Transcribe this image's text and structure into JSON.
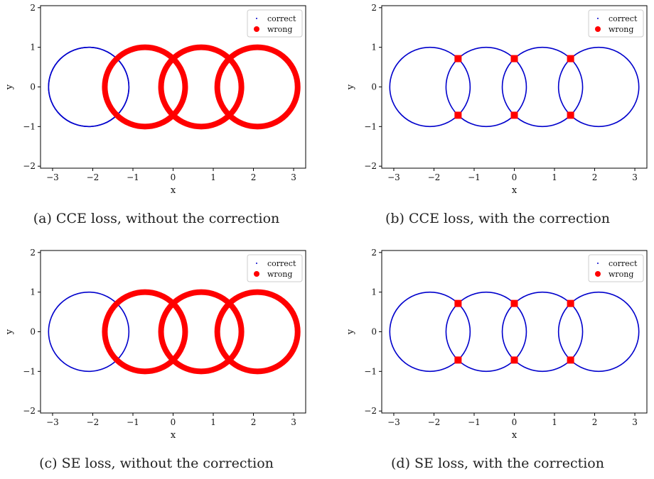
{
  "panels": [
    {
      "caption": "(a) CCE loss, without the correction"
    },
    {
      "caption": "(b) CCE loss, with the correction"
    },
    {
      "caption": "(c) SE loss, without the correction"
    },
    {
      "caption": "(d) SE loss, with the correction"
    }
  ],
  "chart_data": [
    {
      "type": "scatter",
      "title": "",
      "xlabel": "x",
      "ylabel": "y",
      "xlim": [
        -3.3,
        3.3
      ],
      "ylim": [
        -2.05,
        2.05
      ],
      "xticks": [
        "−3",
        "−2",
        "−1",
        "0",
        "1",
        "2",
        "3"
      ],
      "yticks": [
        "−2",
        "−1",
        "0",
        "1",
        "2"
      ],
      "legend": {
        "placement": "top-right"
      },
      "series": [
        {
          "name": "correct",
          "color": "#0000cc",
          "marker": "dot",
          "circles": [
            {
              "cx": -2.1,
              "cy": 0,
              "r": 1,
              "arc": "outer"
            },
            {
              "cx": -2.1,
              "cy": 0,
              "r": 1,
              "arc": "inner"
            }
          ]
        },
        {
          "name": "wrong",
          "color": "#ff0000",
          "marker": "thick",
          "circles": [
            {
              "cx": -0.7,
              "cy": 0,
              "r": 1
            },
            {
              "cx": 0.7,
              "cy": 0,
              "r": 1
            },
            {
              "cx": 2.1,
              "cy": 0,
              "r": 1
            }
          ]
        }
      ]
    },
    {
      "type": "scatter",
      "title": "",
      "xlabel": "x",
      "ylabel": "y",
      "xlim": [
        -3.3,
        3.3
      ],
      "ylim": [
        -2.05,
        2.05
      ],
      "xticks": [
        "−3",
        "−2",
        "−1",
        "0",
        "1",
        "2",
        "3"
      ],
      "yticks": [
        "−2",
        "−1",
        "0",
        "1",
        "2"
      ],
      "legend": {
        "placement": "top-right"
      },
      "series": [
        {
          "name": "correct",
          "color": "#0000cc",
          "marker": "dot",
          "circles": [
            {
              "cx": -2.1,
              "cy": 0,
              "r": 1
            },
            {
              "cx": -0.7,
              "cy": 0,
              "r": 1
            },
            {
              "cx": 0.7,
              "cy": 0,
              "r": 1
            },
            {
              "cx": 2.1,
              "cy": 0,
              "r": 1
            }
          ]
        },
        {
          "name": "wrong",
          "color": "#ff0000",
          "marker": "square",
          "points": [
            [
              -1.4,
              0.714
            ],
            [
              -1.4,
              -0.714
            ],
            [
              0,
              0.714
            ],
            [
              0,
              -0.714
            ],
            [
              1.4,
              0.714
            ],
            [
              1.4,
              -0.714
            ]
          ]
        }
      ]
    },
    {
      "type": "scatter",
      "title": "",
      "xlabel": "x",
      "ylabel": "y",
      "xlim": [
        -3.3,
        3.3
      ],
      "ylim": [
        -2.05,
        2.05
      ],
      "xticks": [
        "−3",
        "−2",
        "−1",
        "0",
        "1",
        "2",
        "3"
      ],
      "yticks": [
        "−2",
        "−1",
        "0",
        "1",
        "2"
      ],
      "legend": {
        "placement": "top-right"
      },
      "series": [
        {
          "name": "correct",
          "color": "#0000cc",
          "marker": "dot",
          "circles": [
            {
              "cx": -2.1,
              "cy": 0,
              "r": 1
            }
          ]
        },
        {
          "name": "wrong",
          "color": "#ff0000",
          "marker": "thick",
          "circles": [
            {
              "cx": -0.7,
              "cy": 0,
              "r": 1
            },
            {
              "cx": 0.7,
              "cy": 0,
              "r": 1
            },
            {
              "cx": 2.1,
              "cy": 0,
              "r": 1
            }
          ]
        }
      ]
    },
    {
      "type": "scatter",
      "title": "",
      "xlabel": "x",
      "ylabel": "y",
      "xlim": [
        -3.3,
        3.3
      ],
      "ylim": [
        -2.05,
        2.05
      ],
      "xticks": [
        "−3",
        "−2",
        "−1",
        "0",
        "1",
        "2",
        "3"
      ],
      "yticks": [
        "−2",
        "−1",
        "0",
        "1",
        "2"
      ],
      "legend": {
        "placement": "top-right"
      },
      "series": [
        {
          "name": "correct",
          "color": "#0000cc",
          "marker": "dot",
          "circles": [
            {
              "cx": -2.1,
              "cy": 0,
              "r": 1
            },
            {
              "cx": -0.7,
              "cy": 0,
              "r": 1
            },
            {
              "cx": 0.7,
              "cy": 0,
              "r": 1
            },
            {
              "cx": 2.1,
              "cy": 0,
              "r": 1
            }
          ]
        },
        {
          "name": "wrong",
          "color": "#ff0000",
          "marker": "square",
          "points": [
            [
              -1.4,
              0.714
            ],
            [
              -1.4,
              -0.714
            ],
            [
              0,
              0.714
            ],
            [
              0,
              -0.714
            ],
            [
              1.4,
              0.714
            ],
            [
              1.4,
              -0.714
            ]
          ]
        }
      ]
    }
  ]
}
